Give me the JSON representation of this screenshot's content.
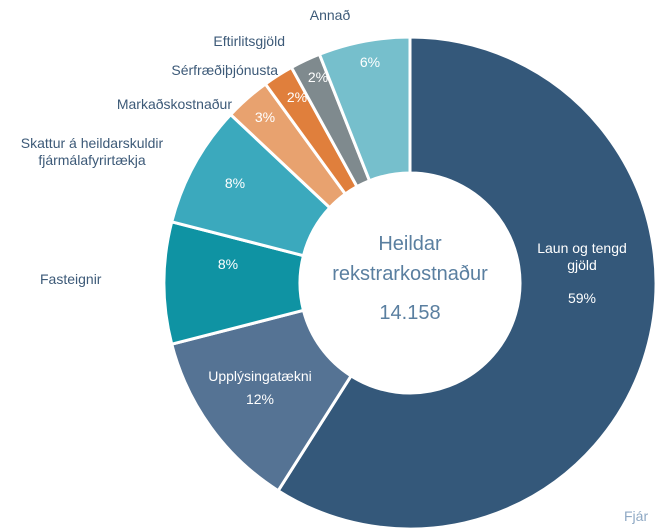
{
  "chart_data": {
    "type": "donut",
    "center_title": "Heildar rekstrarkostnaður",
    "center_value": "14.158",
    "source": "Fjár",
    "categories": [
      "Laun og tengd gjöld",
      "Upplýsingatækni",
      "Fasteignir",
      "Skattur á heildarskuldir fjármálafyrirtækja",
      "Markaðskostnaður",
      "Sérfræðiþjónusta",
      "Eftirlitsgjöld",
      "Annað"
    ],
    "values": [
      59,
      12,
      8,
      8,
      3,
      2,
      2,
      6
    ],
    "value_labels": [
      "59%",
      "12%",
      "8%",
      "8%",
      "3%",
      "2%",
      "2%",
      "6%"
    ],
    "colors": [
      "#34587a",
      "#557394",
      "#0f93a3",
      "#3ba9bd",
      "#e8a26f",
      "#e07f3c",
      "#7f8a8e",
      "#76bfcc"
    ]
  }
}
